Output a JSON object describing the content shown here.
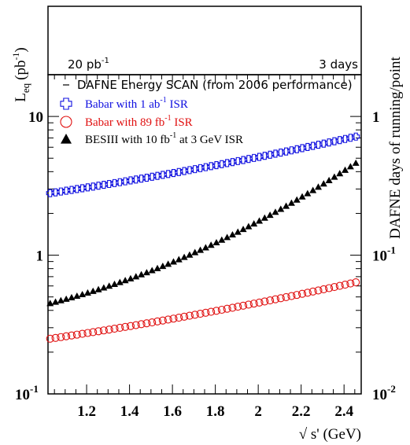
{
  "chart_data": {
    "type": "scatter",
    "title": "",
    "xlabel": "√ s' (GeV)",
    "ylabel_left_main": "L",
    "ylabel_left_sub": "eq",
    "ylabel_left_units": "(pb",
    "ylabel_left_units_sup": "-1",
    "ylabel_left_units_end": ")",
    "ylabel_right": "DAFNE days of running/point",
    "xlim": [
      1.02,
      2.48
    ],
    "ylim_left": [
      0.1,
      20
    ],
    "ylim_right": [
      0.01,
      2
    ],
    "y_scale": "log",
    "x_ticks": [
      "1.2",
      "1.4",
      "1.6",
      "1.8",
      "2",
      "2.2",
      "2.4"
    ],
    "y_left_ticks": [
      {
        "value": 10,
        "label": "10",
        "sup": ""
      },
      {
        "value": 1,
        "label": "1",
        "sup": ""
      },
      {
        "value": 0.1,
        "label": "10",
        "sup": "-1"
      }
    ],
    "y_right_ticks": [
      {
        "value": 1,
        "label": "1",
        "sup": ""
      },
      {
        "value": 0.1,
        "label": "10",
        "sup": "-1"
      },
      {
        "value": 0.01,
        "label": "10",
        "sup": "-2"
      }
    ],
    "top_panel": {
      "left_label": "20 pb",
      "left_label_sup": "-1",
      "right_label": "3 days"
    },
    "legend_position": "top-left",
    "series": [
      {
        "name": "DAFNE Energy SCAN (from 2006 performance)",
        "name_html": {
          "text": "DAFNE Energy SCAN (from 2006 performance)"
        },
        "marker": "dash",
        "color": "#000000",
        "x": [],
        "y": []
      },
      {
        "name": "Babar with 1 ab-1 ISR",
        "label_parts": {
          "pre": "Babar with 1 ab",
          "sup": "-1",
          "post": " ISR"
        },
        "marker": "open-cross",
        "color": "#1010e0",
        "x_start": 1.03,
        "x_step": 0.025,
        "count": 59,
        "y_start": 2.8,
        "y_end": 7.3
      },
      {
        "name": "Babar with 89 fb-1 ISR",
        "label_parts": {
          "pre": "Babar with 89 fb",
          "sup": "-1",
          "post": " ISR"
        },
        "marker": "open-circle",
        "color": "#e01010",
        "x_start": 1.03,
        "x_step": 0.025,
        "count": 59,
        "y_start": 0.25,
        "y_end": 0.65
      },
      {
        "name": "BESIII with 10 fb-1 at 3 GeV ISR",
        "label_parts": {
          "pre": "BESIII with 10 fb",
          "sup": "-1",
          "post": " at 3 GeV ISR"
        },
        "marker": "filled-triangle",
        "color": "#000000",
        "x_start": 1.03,
        "x_step": 0.025,
        "count": 59,
        "y_start": 0.45,
        "y_end": 4.9
      }
    ]
  }
}
